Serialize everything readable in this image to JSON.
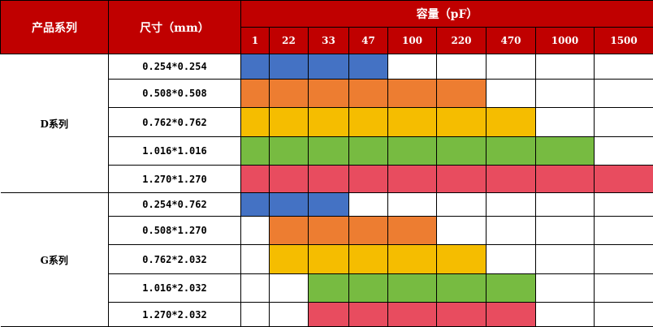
{
  "header": {
    "series": "产品系列",
    "size": "尺寸（mm）",
    "capacity": "容量（pF）",
    "capacities": [
      "1",
      "22",
      "33",
      "47",
      "100",
      "220",
      "470",
      "1000",
      "1500"
    ]
  },
  "colors": {
    "header": "#C00000",
    "blue": "#4472C4",
    "orange": "#ED7D31",
    "yellow": "#F5BD00",
    "green": "#77BB41",
    "red": "#E84C5F"
  },
  "groups": [
    {
      "name": "D系列",
      "rows": [
        {
          "size": "0.254*0.254",
          "from": 0,
          "to": 3,
          "color": "blue"
        },
        {
          "size": "0.508*0.508",
          "from": 0,
          "to": 5,
          "color": "orange"
        },
        {
          "size": "0.762*0.762",
          "from": 0,
          "to": 6,
          "color": "yellow"
        },
        {
          "size": "1.016*1.016",
          "from": 0,
          "to": 7,
          "color": "green"
        },
        {
          "size": "1.270*1.270",
          "from": 0,
          "to": 8,
          "color": "red"
        }
      ]
    },
    {
      "name": "G系列",
      "rows": [
        {
          "size": "0.254*0.762",
          "from": 0,
          "to": 2,
          "color": "blue"
        },
        {
          "size": "0.508*1.270",
          "from": 1,
          "to": 4,
          "color": "orange"
        },
        {
          "size": "0.762*2.032",
          "from": 1,
          "to": 5,
          "color": "yellow"
        },
        {
          "size": "1.016*2.032",
          "from": 2,
          "to": 6,
          "color": "green"
        },
        {
          "size": "1.270*2.032",
          "from": 2,
          "to": 6,
          "color": "red"
        }
      ]
    }
  ]
}
